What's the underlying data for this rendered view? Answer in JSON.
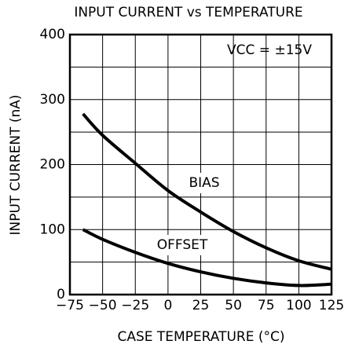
{
  "chart_data": {
    "type": "line",
    "title": "INPUT CURRENT vs TEMPERATURE",
    "x_label": "CASE TEMPERATURE (°C)",
    "y_label": "INPUT CURRENT (nA)",
    "annotations": [
      "VCC = ±15V"
    ],
    "x": [
      -65,
      -50,
      -25,
      0,
      25,
      50,
      75,
      100,
      125
    ],
    "series": [
      {
        "name": "BIAS",
        "color": "#000000",
        "values": [
          278,
          245,
          202,
          160,
          127,
          97,
          72,
          52,
          39
        ]
      },
      {
        "name": "OFFSET",
        "color": "#000000",
        "values": [
          100,
          85,
          65,
          48,
          35,
          25,
          18,
          14,
          16
        ]
      }
    ],
    "xlim": [
      -75,
      125
    ],
    "xticks": [
      {
        "value": -75,
        "label": "−75"
      },
      {
        "value": -50,
        "label": "−50"
      },
      {
        "value": -25,
        "label": "−25"
      },
      0,
      25,
      50,
      75,
      100,
      125
    ],
    "ylim": [
      0,
      400
    ],
    "yticks": [
      0,
      100,
      200,
      300,
      400
    ],
    "minor_yticks": [
      50,
      150,
      250,
      350
    ],
    "grid": true
  }
}
